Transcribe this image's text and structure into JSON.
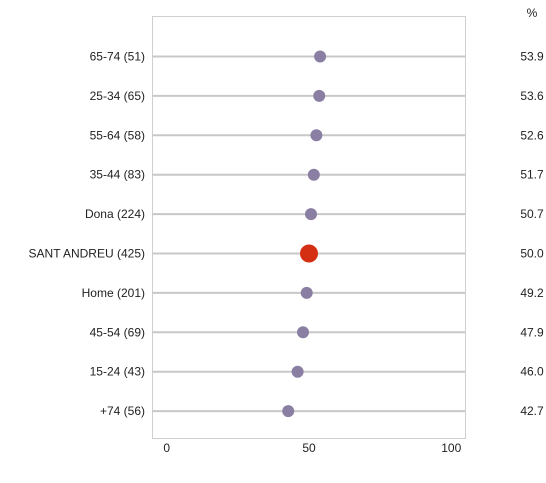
{
  "chart_data": {
    "type": "dot",
    "value_header": "%",
    "categories": [
      "65-74 (51)",
      "25-34 (65)",
      "55-64 (58)",
      "35-44 (83)",
      "Dona (224)",
      "SANT ANDREU (425)",
      "Home (201)",
      "45-54 (69)",
      "15-24 (43)",
      "+74 (56)"
    ],
    "values": [
      53.9,
      53.6,
      52.6,
      51.7,
      50.7,
      50.0,
      49.2,
      47.9,
      46.0,
      42.7
    ],
    "value_labels": [
      "53.9",
      "53.6",
      "52.6",
      "51.7",
      "50.7",
      "50.0",
      "49.2",
      "47.9",
      "46.0",
      "42.7"
    ],
    "highlight_index": 5,
    "xlim": [
      -5,
      105
    ],
    "xticks": [
      0,
      50,
      100
    ],
    "xtick_labels": [
      "0",
      "50",
      "100"
    ],
    "grid": false,
    "colors": {
      "dot": "#8a7fa3",
      "highlight": "#d42f13",
      "track": "#c8c8c8",
      "frame": "#cfcfcf"
    }
  }
}
